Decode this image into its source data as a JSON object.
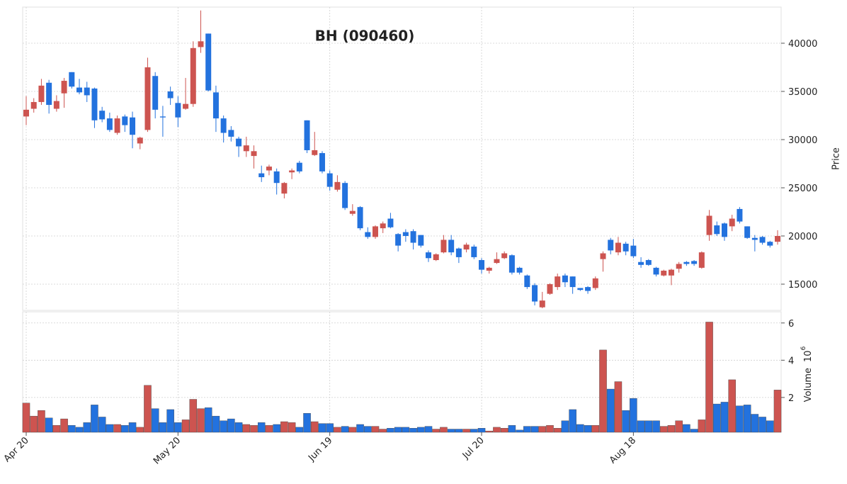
{
  "chart_data": {
    "type": "candlestick",
    "title": "BH (090460)",
    "ylabel": "Price",
    "up_color": "#cd5450",
    "down_color": "#2372de",
    "grid": true,
    "categories": [
      "Apr 20",
      null,
      null,
      null,
      null,
      null,
      null,
      null,
      null,
      null,
      null,
      null,
      null,
      null,
      null,
      null,
      null,
      null,
      null,
      null,
      "May 20",
      null,
      null,
      null,
      null,
      null,
      null,
      null,
      null,
      null,
      null,
      null,
      null,
      null,
      null,
      null,
      null,
      null,
      null,
      null,
      "Jun 19",
      null,
      null,
      null,
      null,
      null,
      null,
      null,
      null,
      null,
      null,
      null,
      null,
      null,
      null,
      null,
      null,
      null,
      null,
      null,
      "Jul 20",
      null,
      null,
      null,
      null,
      null,
      null,
      null,
      null,
      null,
      null,
      null,
      null,
      null,
      null,
      null,
      null,
      null,
      null,
      null,
      "Aug 18",
      null,
      null,
      null,
      null,
      null,
      null,
      null,
      null,
      null,
      null,
      null,
      null,
      null,
      null,
      null,
      null,
      null,
      null,
      null
    ],
    "open": [
      32400,
      33200,
      33900,
      35900,
      33200,
      34800,
      37000,
      35400,
      35400,
      35300,
      33000,
      32200,
      30700,
      32400,
      32300,
      29600,
      31000,
      36600,
      32400,
      35000,
      33800,
      33200,
      33700,
      39600,
      41000,
      34900,
      32200,
      31000,
      30100,
      28800,
      28300,
      26500,
      26800,
      26700,
      24400,
      26600,
      27600,
      32000,
      28400,
      28600,
      26500,
      24800,
      25500,
      22300,
      23000,
      20400,
      19900,
      20800,
      21800,
      20200,
      20400,
      20500,
      20100,
      18300,
      17500,
      18300,
      19600,
      18700,
      18600,
      18900,
      17500,
      16400,
      17200,
      17700,
      18000,
      16700,
      15900,
      14900,
      12600,
      14000,
      14700,
      15900,
      15800,
      14600,
      14700,
      14600,
      17600,
      19600,
      18300,
      19200,
      19000,
      17300,
      17500,
      16700,
      15900,
      15900,
      16600,
      17300,
      17400,
      16700,
      20100,
      21100,
      21300,
      21000,
      22800,
      21000,
      19800,
      19900,
      19400,
      19400
    ],
    "high": [
      34500,
      34300,
      36300,
      36200,
      34600,
      36400,
      37000,
      36300,
      36000,
      35400,
      33400,
      32800,
      32500,
      32600,
      32900,
      30300,
      38500,
      37000,
      33500,
      35500,
      34500,
      36400,
      40200,
      43400,
      41000,
      35600,
      32500,
      31400,
      30300,
      30300,
      29400,
      27300,
      27400,
      27000,
      25600,
      27000,
      27800,
      32000,
      30800,
      28800,
      26800,
      26300,
      25700,
      23300,
      23100,
      20900,
      21100,
      21500,
      22400,
      20300,
      20700,
      20700,
      20100,
      18500,
      18200,
      20100,
      20100,
      18800,
      19300,
      19100,
      17700,
      16800,
      18300,
      18400,
      18100,
      16800,
      16000,
      15100,
      14200,
      15100,
      16100,
      16100,
      15800,
      14600,
      14800,
      15800,
      18400,
      19800,
      19900,
      19400,
      19700,
      17800,
      17600,
      16800,
      16500,
      16600,
      17300,
      17400,
      17500,
      18400,
      22700,
      21500,
      21400,
      22200,
      23000,
      21000,
      20100,
      20000,
      19500,
      20600
    ],
    "low": [
      31500,
      32800,
      33600,
      32700,
      32900,
      33300,
      35300,
      34700,
      33900,
      31200,
      31800,
      30800,
      30500,
      30800,
      29100,
      29000,
      30800,
      32200,
      30300,
      33600,
      31300,
      33100,
      33400,
      39000,
      35000,
      30800,
      29700,
      29800,
      28200,
      28200,
      27000,
      25600,
      26300,
      24300,
      23900,
      25900,
      26500,
      28600,
      28300,
      26500,
      24700,
      24600,
      22700,
      22100,
      20600,
      19700,
      19700,
      20300,
      20800,
      18400,
      19400,
      18600,
      18800,
      17300,
      17400,
      18200,
      18000,
      17200,
      18300,
      17600,
      16100,
      16100,
      17100,
      17600,
      16000,
      16000,
      14500,
      12800,
      12500,
      13900,
      14400,
      14700,
      14000,
      14300,
      14000,
      14400,
      16300,
      18100,
      18000,
      18000,
      17700,
      16700,
      16900,
      15800,
      15800,
      14900,
      16200,
      16900,
      16900,
      16600,
      19500,
      20000,
      19500,
      20500,
      21300,
      19700,
      18400,
      19100,
      18800,
      19100
    ],
    "close": [
      33100,
      33900,
      35600,
      33600,
      34000,
      36100,
      35500,
      34900,
      34600,
      32000,
      32100,
      31000,
      32200,
      31500,
      30500,
      30200,
      37500,
      33100,
      32300,
      34300,
      32300,
      33700,
      39500,
      40200,
      35100,
      32200,
      30700,
      30300,
      29300,
      29400,
      28800,
      26100,
      27200,
      25500,
      25500,
      26800,
      26700,
      28900,
      28900,
      26700,
      25100,
      25600,
      22900,
      22600,
      20800,
      19900,
      21000,
      21300,
      20900,
      19000,
      20000,
      19300,
      19000,
      17700,
      18100,
      19600,
      18300,
      17800,
      19100,
      17800,
      16500,
      16700,
      17600,
      18200,
      16200,
      16200,
      14700,
      13200,
      13300,
      15000,
      15800,
      15200,
      14700,
      14400,
      14300,
      15600,
      18200,
      18500,
      19300,
      18400,
      17900,
      17000,
      17000,
      16000,
      16400,
      16500,
      17100,
      17100,
      17100,
      18300,
      22100,
      20200,
      19900,
      21800,
      21500,
      19800,
      19600,
      19300,
      19000,
      20000
    ],
    "ylim": [
      12280,
      43750
    ],
    "yticks": [
      15000,
      20000,
      25000,
      30000,
      35000,
      40000
    ],
    "volume": {
      "ylabel": "Volume",
      "scale_base": "10",
      "scale_exponent": "6",
      "ylim": [
        0.13,
        6.6
      ],
      "yticks": [
        2,
        4,
        6
      ],
      "values": [
        1.7,
        1.0,
        1.3,
        0.9,
        0.5,
        0.85,
        0.5,
        0.4,
        0.65,
        1.6,
        0.95,
        0.55,
        0.55,
        0.5,
        0.65,
        0.4,
        2.65,
        1.4,
        0.65,
        1.35,
        0.65,
        0.8,
        1.9,
        1.4,
        1.45,
        1.0,
        0.75,
        0.85,
        0.65,
        0.55,
        0.5,
        0.65,
        0.5,
        0.55,
        0.7,
        0.65,
        0.4,
        1.15,
        0.7,
        0.6,
        0.6,
        0.4,
        0.45,
        0.4,
        0.55,
        0.45,
        0.45,
        0.3,
        0.35,
        0.4,
        0.4,
        0.35,
        0.4,
        0.45,
        0.3,
        0.4,
        0.3,
        0.3,
        0.3,
        0.3,
        0.35,
        0.2,
        0.4,
        0.35,
        0.5,
        0.25,
        0.45,
        0.45,
        0.45,
        0.5,
        0.35,
        0.75,
        1.35,
        0.55,
        0.5,
        0.5,
        4.55,
        2.45,
        2.85,
        1.3,
        1.95,
        0.75,
        0.75,
        0.75,
        0.45,
        0.5,
        0.75,
        0.55,
        0.3,
        0.8,
        6.05,
        1.65,
        1.75,
        2.95,
        1.55,
        1.6,
        1.1,
        0.95,
        0.75,
        2.4
      ]
    }
  }
}
